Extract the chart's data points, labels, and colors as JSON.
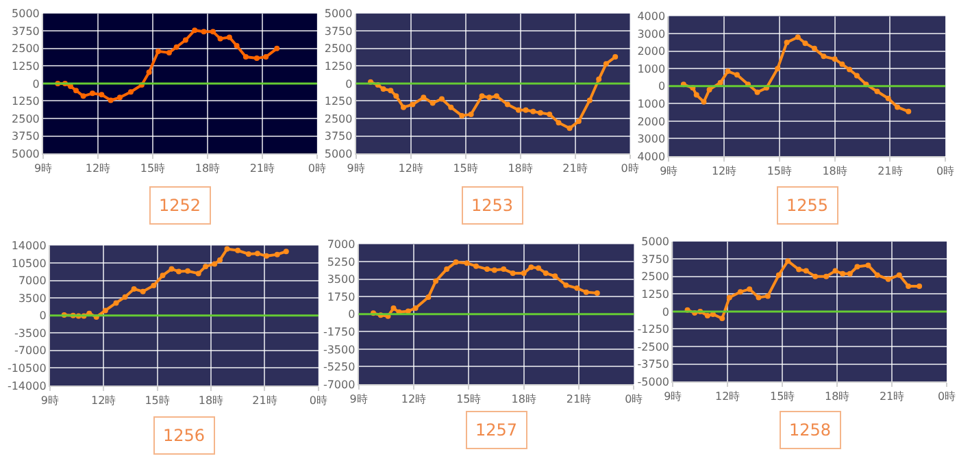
{
  "chart_data": [
    {
      "type": "line",
      "title": "1252",
      "x": [
        "--01-01T09:48",
        "--01-01T10:12",
        "--01-01T10:30",
        "--01-01T10:48",
        "--01-01T11:12",
        "--01-01T11:42",
        "--01-01T12:12",
        "--01-01T12:42",
        "--01-01T13:12",
        "--01-01T13:48",
        "--01-01T14:24",
        "--01-01T14:48",
        "--01-01T15:18",
        "--01-01T15:54",
        "--01-01T16:18",
        "--01-01T16:48",
        "--01-01T17:18",
        "--01-01T17:48",
        "--01-01T18:18",
        "--01-01T18:42",
        "--01-01T19:12",
        "--01-01T19:36",
        "--01-01T20:06",
        "--01-01T20:42",
        "--01-01T21:12",
        "--01-01T21:48"
      ],
      "series": [
        {
          "color": "#ff6600",
          "values": [
            0,
            0,
            -200,
            -500,
            -900,
            -700,
            -800,
            -1200,
            -1000,
            -600,
            -100,
            800,
            2300,
            2200,
            2600,
            3100,
            3800,
            3700,
            3700,
            3200,
            3300,
            2700,
            1900,
            1800,
            1900,
            2500
          ]
        }
      ],
      "xlim": [
        "--01-01T09:00",
        "--01-02T00:00"
      ],
      "xticks": [
        {
          "value": "--01-01T09:00",
          "label": "9時"
        },
        {
          "value": "--01-01T12:00",
          "label": "12時"
        },
        {
          "value": "--01-01T15:00",
          "label": "15時"
        },
        {
          "value": "--01-01T18:00",
          "label": "18時"
        },
        {
          "value": "--01-01T21:00",
          "label": "21時"
        },
        {
          "value": "--01-02T00:00",
          "label": "0時"
        }
      ],
      "ylim": [
        -5000,
        5000
      ],
      "yticks": [
        {
          "value": -5000,
          "label": "5000"
        },
        {
          "value": -3750,
          "label": "3750"
        },
        {
          "value": -2500,
          "label": "2500"
        },
        {
          "value": -1250,
          "label": "1250"
        },
        0,
        1250,
        2500,
        3750,
        5000
      ],
      "ref_lines": [
        {
          "axis": "y",
          "value": 0,
          "color": "#66cc33"
        }
      ],
      "grid": true,
      "marker": "circle",
      "line_style": "solid",
      "legend": false
    },
    {
      "type": "line",
      "title": "1253",
      "x": [
        "--01-01T09:48",
        "--01-01T10:12",
        "--01-01T10:30",
        "--01-01T10:54",
        "--01-01T11:12",
        "--01-01T11:36",
        "--01-01T12:06",
        "--01-01T12:42",
        "--01-01T13:12",
        "--01-01T13:42",
        "--01-01T14:12",
        "--01-01T14:48",
        "--01-01T15:18",
        "--01-01T15:54",
        "--01-01T16:18",
        "--01-01T16:42",
        "--01-01T17:18",
        "--01-01T17:54",
        "--01-01T18:18",
        "--01-01T18:42",
        "--01-01T19:06",
        "--01-01T19:36",
        "--01-01T20:06",
        "--01-01T20:42",
        "--01-01T21:12",
        "--01-01T21:48",
        "--01-01T22:18",
        "--01-01T22:42",
        "--01-01T23:12"
      ],
      "series": [
        {
          "color": "#ff8c1a",
          "values": [
            100,
            -100,
            -400,
            -500,
            -900,
            -1700,
            -1500,
            -1000,
            -1400,
            -1100,
            -1700,
            -2300,
            -2200,
            -900,
            -1000,
            -900,
            -1500,
            -1900,
            -1900,
            -2000,
            -2100,
            -2200,
            -2800,
            -3200,
            -2700,
            -1200,
            300,
            1400,
            1900
          ]
        }
      ],
      "xlim": [
        "--01-01T09:00",
        "--01-02T00:00"
      ],
      "xticks": [
        {
          "value": "--01-01T09:00",
          "label": "9時"
        },
        {
          "value": "--01-01T12:00",
          "label": "12時"
        },
        {
          "value": "--01-01T15:00",
          "label": "15時"
        },
        {
          "value": "--01-01T18:00",
          "label": "18時"
        },
        {
          "value": "--01-01T21:00",
          "label": "21時"
        },
        {
          "value": "--01-02T00:00",
          "label": "0時"
        }
      ],
      "ylim": [
        -5000,
        5000
      ],
      "yticks": [
        {
          "value": -5000,
          "label": "5000"
        },
        {
          "value": -3750,
          "label": "3750"
        },
        {
          "value": -2500,
          "label": "2500"
        },
        {
          "value": -1250,
          "label": "1250"
        },
        0,
        1250,
        2500,
        3750,
        5000
      ],
      "ref_lines": [
        {
          "axis": "y",
          "value": 0,
          "color": "#66cc33"
        }
      ],
      "grid": true,
      "marker": "circle",
      "line_style": "solid",
      "legend": false
    },
    {
      "type": "line",
      "title": "1255",
      "x": [
        "--01-01T09:48",
        "--01-01T10:18",
        "--01-01T10:30",
        "--01-01T10:54",
        "--01-01T11:12",
        "--01-01T11:48",
        "--01-01T12:12",
        "--01-01T12:42",
        "--01-01T13:18",
        "--01-01T13:48",
        "--01-01T14:18",
        "--01-01T14:54",
        "--01-01T15:24",
        "--01-01T16:00",
        "--01-01T16:24",
        "--01-01T16:54",
        "--01-01T17:24",
        "--01-01T18:00",
        "--01-01T18:24",
        "--01-01T18:48",
        "--01-01T19:12",
        "--01-01T19:42",
        "--01-01T20:18",
        "--01-01T20:54",
        "--01-01T21:24",
        "--01-01T22:00"
      ],
      "series": [
        {
          "color": "#ff8c1a",
          "values": [
            100,
            -100,
            -500,
            -900,
            -200,
            200,
            850,
            650,
            100,
            -350,
            -100,
            1000,
            2500,
            2800,
            2450,
            2150,
            1700,
            1550,
            1250,
            950,
            600,
            100,
            -300,
            -700,
            -1200,
            -1450
          ]
        }
      ],
      "xlim": [
        "--01-01T09:00",
        "--01-02T00:00"
      ],
      "xticks": [
        {
          "value": "--01-01T09:00",
          "label": "9時"
        },
        {
          "value": "--01-01T12:00",
          "label": "12時"
        },
        {
          "value": "--01-01T15:00",
          "label": "15時"
        },
        {
          "value": "--01-01T18:00",
          "label": "18時"
        },
        {
          "value": "--01-01T21:00",
          "label": "21時"
        },
        {
          "value": "--01-02T00:00",
          "label": "0時"
        }
      ],
      "ylim": [
        -4000,
        4000
      ],
      "yticks": [
        {
          "value": -4000,
          "label": "4000"
        },
        {
          "value": -3000,
          "label": "3000"
        },
        {
          "value": -2000,
          "label": "2000"
        },
        {
          "value": -1000,
          "label": "1000"
        },
        0,
        1000,
        2000,
        3000,
        4000
      ],
      "ref_lines": [
        {
          "axis": "y",
          "value": 0,
          "color": "#66cc33"
        }
      ],
      "grid": true,
      "marker": "circle",
      "line_style": "solid",
      "legend": false
    },
    {
      "type": "line",
      "title": "1256",
      "x": [
        "--01-01T09:48",
        "--01-01T10:18",
        "--01-01T10:36",
        "--01-01T10:54",
        "--01-01T11:12",
        "--01-01T11:36",
        "--01-01T12:06",
        "--01-01T12:42",
        "--01-01T13:12",
        "--01-01T13:42",
        "--01-01T14:12",
        "--01-01T14:48",
        "--01-01T15:18",
        "--01-01T15:48",
        "--01-01T16:12",
        "--01-01T16:42",
        "--01-01T17:18",
        "--01-01T17:42",
        "--01-01T18:12",
        "--01-01T18:30",
        "--01-01T18:54",
        "--01-01T19:30",
        "--01-01T20:06",
        "--01-01T20:36",
        "--01-01T21:06",
        "--01-01T21:42",
        "--01-01T22:12"
      ],
      "series": [
        {
          "color": "#ff8c1a",
          "values": [
            100,
            0,
            -100,
            -100,
            400,
            -300,
            1000,
            2500,
            3700,
            5300,
            4800,
            6000,
            8000,
            9300,
            8800,
            8900,
            8400,
            9800,
            10300,
            11100,
            13300,
            13000,
            12300,
            12400,
            11900,
            12200,
            12800
          ]
        }
      ],
      "xlim": [
        "--01-01T09:00",
        "--01-02T00:00"
      ],
      "xticks": [
        {
          "value": "--01-01T09:00",
          "label": "9時"
        },
        {
          "value": "--01-01T12:00",
          "label": "12時"
        },
        {
          "value": "--01-01T15:00",
          "label": "15時"
        },
        {
          "value": "--01-01T18:00",
          "label": "18時"
        },
        {
          "value": "--01-01T21:00",
          "label": "21時"
        },
        {
          "value": "--01-02T00:00",
          "label": "0時"
        }
      ],
      "ylim": [
        -14000,
        14000
      ],
      "yticks": [
        -14000,
        -10500,
        -7000,
        -3500,
        0,
        3500,
        7000,
        10500,
        14000
      ],
      "ref_lines": [
        {
          "axis": "y",
          "value": 0,
          "color": "#66cc33"
        }
      ],
      "grid": true,
      "marker": "circle",
      "line_style": "solid",
      "legend": false
    },
    {
      "type": "line",
      "title": "1257",
      "x": [
        "--01-01T09:48",
        "--01-01T10:12",
        "--01-01T10:36",
        "--01-01T10:54",
        "--01-01T11:12",
        "--01-01T11:42",
        "--01-01T12:06",
        "--01-01T12:48",
        "--01-01T13:12",
        "--01-01T13:48",
        "--01-01T14:18",
        "--01-01T14:54",
        "--01-01T15:24",
        "--01-01T16:00",
        "--01-01T16:24",
        "--01-01T16:54",
        "--01-01T17:24",
        "--01-01T18:00",
        "--01-01T18:24",
        "--01-01T18:48",
        "--01-01T19:12",
        "--01-01T19:42",
        "--01-01T20:18",
        "--01-01T20:54",
        "--01-01T21:24",
        "--01-01T22:00"
      ],
      "series": [
        {
          "color": "#ff8c1a",
          "values": [
            100,
            -100,
            -200,
            600,
            200,
            300,
            600,
            1700,
            3300,
            4500,
            5200,
            5100,
            4800,
            4500,
            4400,
            4500,
            4100,
            4100,
            4700,
            4600,
            4100,
            3800,
            2900,
            2600,
            2200,
            2100
          ]
        }
      ],
      "xlim": [
        "--01-01T09:00",
        "--01-02T00:00"
      ],
      "xticks": [
        {
          "value": "--01-01T09:00",
          "label": "9時"
        },
        {
          "value": "--01-01T12:00",
          "label": "12時"
        },
        {
          "value": "--01-01T15:00",
          "label": "15時"
        },
        {
          "value": "--01-01T18:00",
          "label": "18時"
        },
        {
          "value": "--01-01T21:00",
          "label": "21時"
        },
        {
          "value": "--01-02T00:00",
          "label": "0時"
        }
      ],
      "ylim": [
        -7000,
        7000
      ],
      "yticks": [
        -7000,
        -5250,
        -3500,
        -1750,
        0,
        1750,
        3500,
        5250,
        7000
      ],
      "ref_lines": [
        {
          "axis": "y",
          "value": 0,
          "color": "#66cc33"
        }
      ],
      "grid": true,
      "marker": "circle",
      "line_style": "solid",
      "legend": false
    },
    {
      "type": "line",
      "title": "1258",
      "x": [
        "--01-01T09:48",
        "--01-01T10:12",
        "--01-01T10:30",
        "--01-01T10:54",
        "--01-01T11:12",
        "--01-01T11:42",
        "--01-01T12:06",
        "--01-01T12:42",
        "--01-01T13:12",
        "--01-01T13:42",
        "--01-01T14:12",
        "--01-01T14:48",
        "--01-01T15:18",
        "--01-01T15:54",
        "--01-01T16:18",
        "--01-01T16:48",
        "--01-01T17:24",
        "--01-01T17:54",
        "--01-01T18:18",
        "--01-01T18:42",
        "--01-01T19:06",
        "--01-01T19:42",
        "--01-01T20:12",
        "--01-01T20:48",
        "--01-01T21:24",
        "--01-01T21:54",
        "--01-01T22:30"
      ],
      "series": [
        {
          "color": "#ff8c1a",
          "values": [
            100,
            -100,
            0,
            -300,
            -200,
            -500,
            1000,
            1400,
            1600,
            1000,
            1100,
            2600,
            3600,
            3000,
            2900,
            2500,
            2500,
            2900,
            2700,
            2700,
            3200,
            3300,
            2600,
            2300,
            2600,
            1800,
            1800
          ]
        }
      ],
      "xlim": [
        "--01-01T09:00",
        "--01-02T00:00"
      ],
      "xticks": [
        {
          "value": "--01-01T09:00",
          "label": "9時"
        },
        {
          "value": "--01-01T12:00",
          "label": "12時"
        },
        {
          "value": "--01-01T15:00",
          "label": "15時"
        },
        {
          "value": "--01-01T18:00",
          "label": "18時"
        },
        {
          "value": "--01-01T21:00",
          "label": "21時"
        },
        {
          "value": "--01-02T00:00",
          "label": "0時"
        }
      ],
      "ylim": [
        -5000,
        5000
      ],
      "yticks": [
        -5000,
        -3750,
        -2500,
        -1250,
        0,
        1250,
        2500,
        3750,
        5000
      ],
      "ref_lines": [
        {
          "axis": "y",
          "value": 0,
          "color": "#66cc33"
        }
      ],
      "grid": true,
      "marker": "circle",
      "line_style": "solid",
      "legend": false
    }
  ]
}
